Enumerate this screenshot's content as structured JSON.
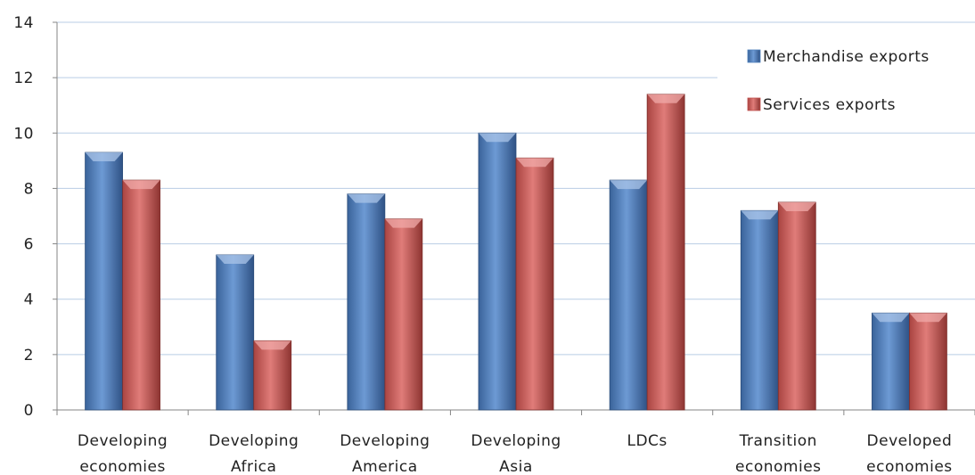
{
  "chart_data": {
    "type": "bar",
    "categories": [
      [
        "Developing",
        "economies"
      ],
      [
        "Developing",
        "Africa"
      ],
      [
        "Developing",
        "America"
      ],
      [
        "Developing",
        "Asia"
      ],
      [
        "LDCs"
      ],
      [
        "Transition",
        "economies"
      ],
      [
        "Developed",
        "economies"
      ]
    ],
    "series": [
      {
        "name": "Merchandise exports",
        "values": [
          9.3,
          5.6,
          7.8,
          10.0,
          8.3,
          7.2,
          3.5
        ]
      },
      {
        "name": "Services exports",
        "values": [
          8.3,
          2.5,
          6.9,
          9.1,
          11.4,
          7.5,
          3.5
        ]
      }
    ],
    "title": "",
    "xlabel": "",
    "ylabel": "",
    "ylim": [
      0,
      14
    ],
    "yticks": [
      0,
      2,
      4,
      6,
      8,
      10,
      12,
      14
    ],
    "grid": true,
    "legend": "top-right",
    "colors": {
      "Merchandise exports": "#4f81bd",
      "Services exports": "#c0504d",
      "grid": "#b9cde5",
      "axis": "#868686"
    }
  }
}
